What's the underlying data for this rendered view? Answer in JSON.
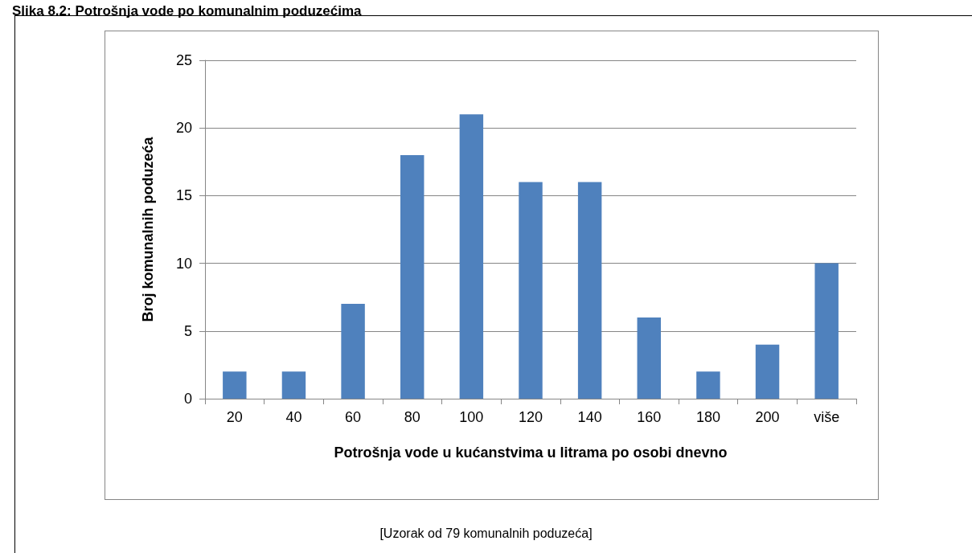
{
  "chart_data": {
    "type": "bar",
    "title": "Slika 8.2: Potrošnja vode po komunalnim poduzećima",
    "xlabel": "Potrošnja vode u kućanstvima u litrama po osobi dnevno",
    "ylabel": "Broj komunalnih poduzeća",
    "categories": [
      "20",
      "40",
      "60",
      "80",
      "100",
      "120",
      "140",
      "160",
      "180",
      "200",
      "više"
    ],
    "values": [
      2,
      2,
      7,
      18,
      21,
      16,
      16,
      6,
      2,
      4,
      10
    ],
    "color": "#4f81bd",
    "ylim": [
      0,
      25
    ],
    "yticks": [
      0,
      5,
      10,
      15,
      20,
      25
    ],
    "grid": "y",
    "annotations": [
      "[Uzorak od 79 komunalnih poduzeća]"
    ]
  }
}
